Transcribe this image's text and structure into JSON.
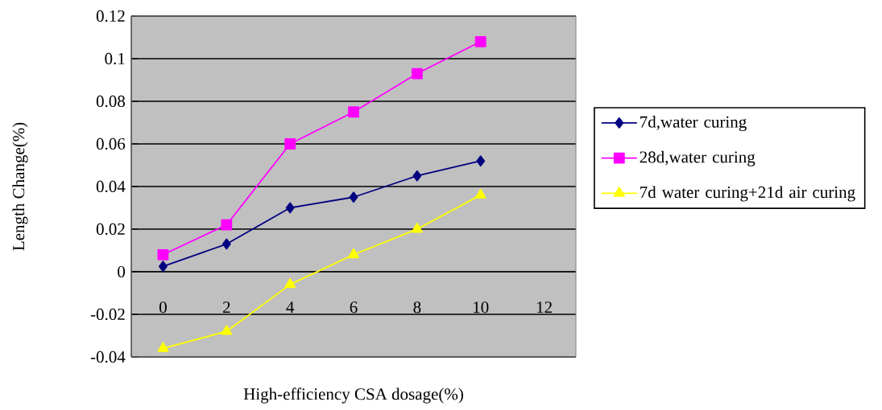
{
  "chart_data": {
    "type": "line",
    "xlabel": "High-efficiency CSA dosage(%)",
    "ylabel": "Length Change(%)",
    "categories": [
      "0",
      "2",
      "4",
      "6",
      "8",
      "10",
      "12"
    ],
    "series": [
      {
        "name": "7d,water curing",
        "color": "#000080",
        "marker": "diamond",
        "values": [
          0.0025,
          0.013,
          0.03,
          0.035,
          0.045,
          0.052,
          null
        ]
      },
      {
        "name": "28d,water curing",
        "color": "#ff00ff",
        "marker": "square",
        "values": [
          0.008,
          0.022,
          0.06,
          0.075,
          0.093,
          0.108,
          null
        ]
      },
      {
        "name": "7d water curing+21d air curing",
        "color": "#ffff00",
        "marker": "triangle",
        "values": [
          -0.036,
          -0.028,
          -0.006,
          0.008,
          0.02,
          0.036,
          null
        ]
      }
    ],
    "ylim": [
      -0.04,
      0.12
    ],
    "yticks": [
      -0.04,
      -0.02,
      0,
      0.02,
      0.04,
      0.06,
      0.08,
      0.1,
      0.12
    ],
    "grid": "y",
    "legend": "right"
  }
}
